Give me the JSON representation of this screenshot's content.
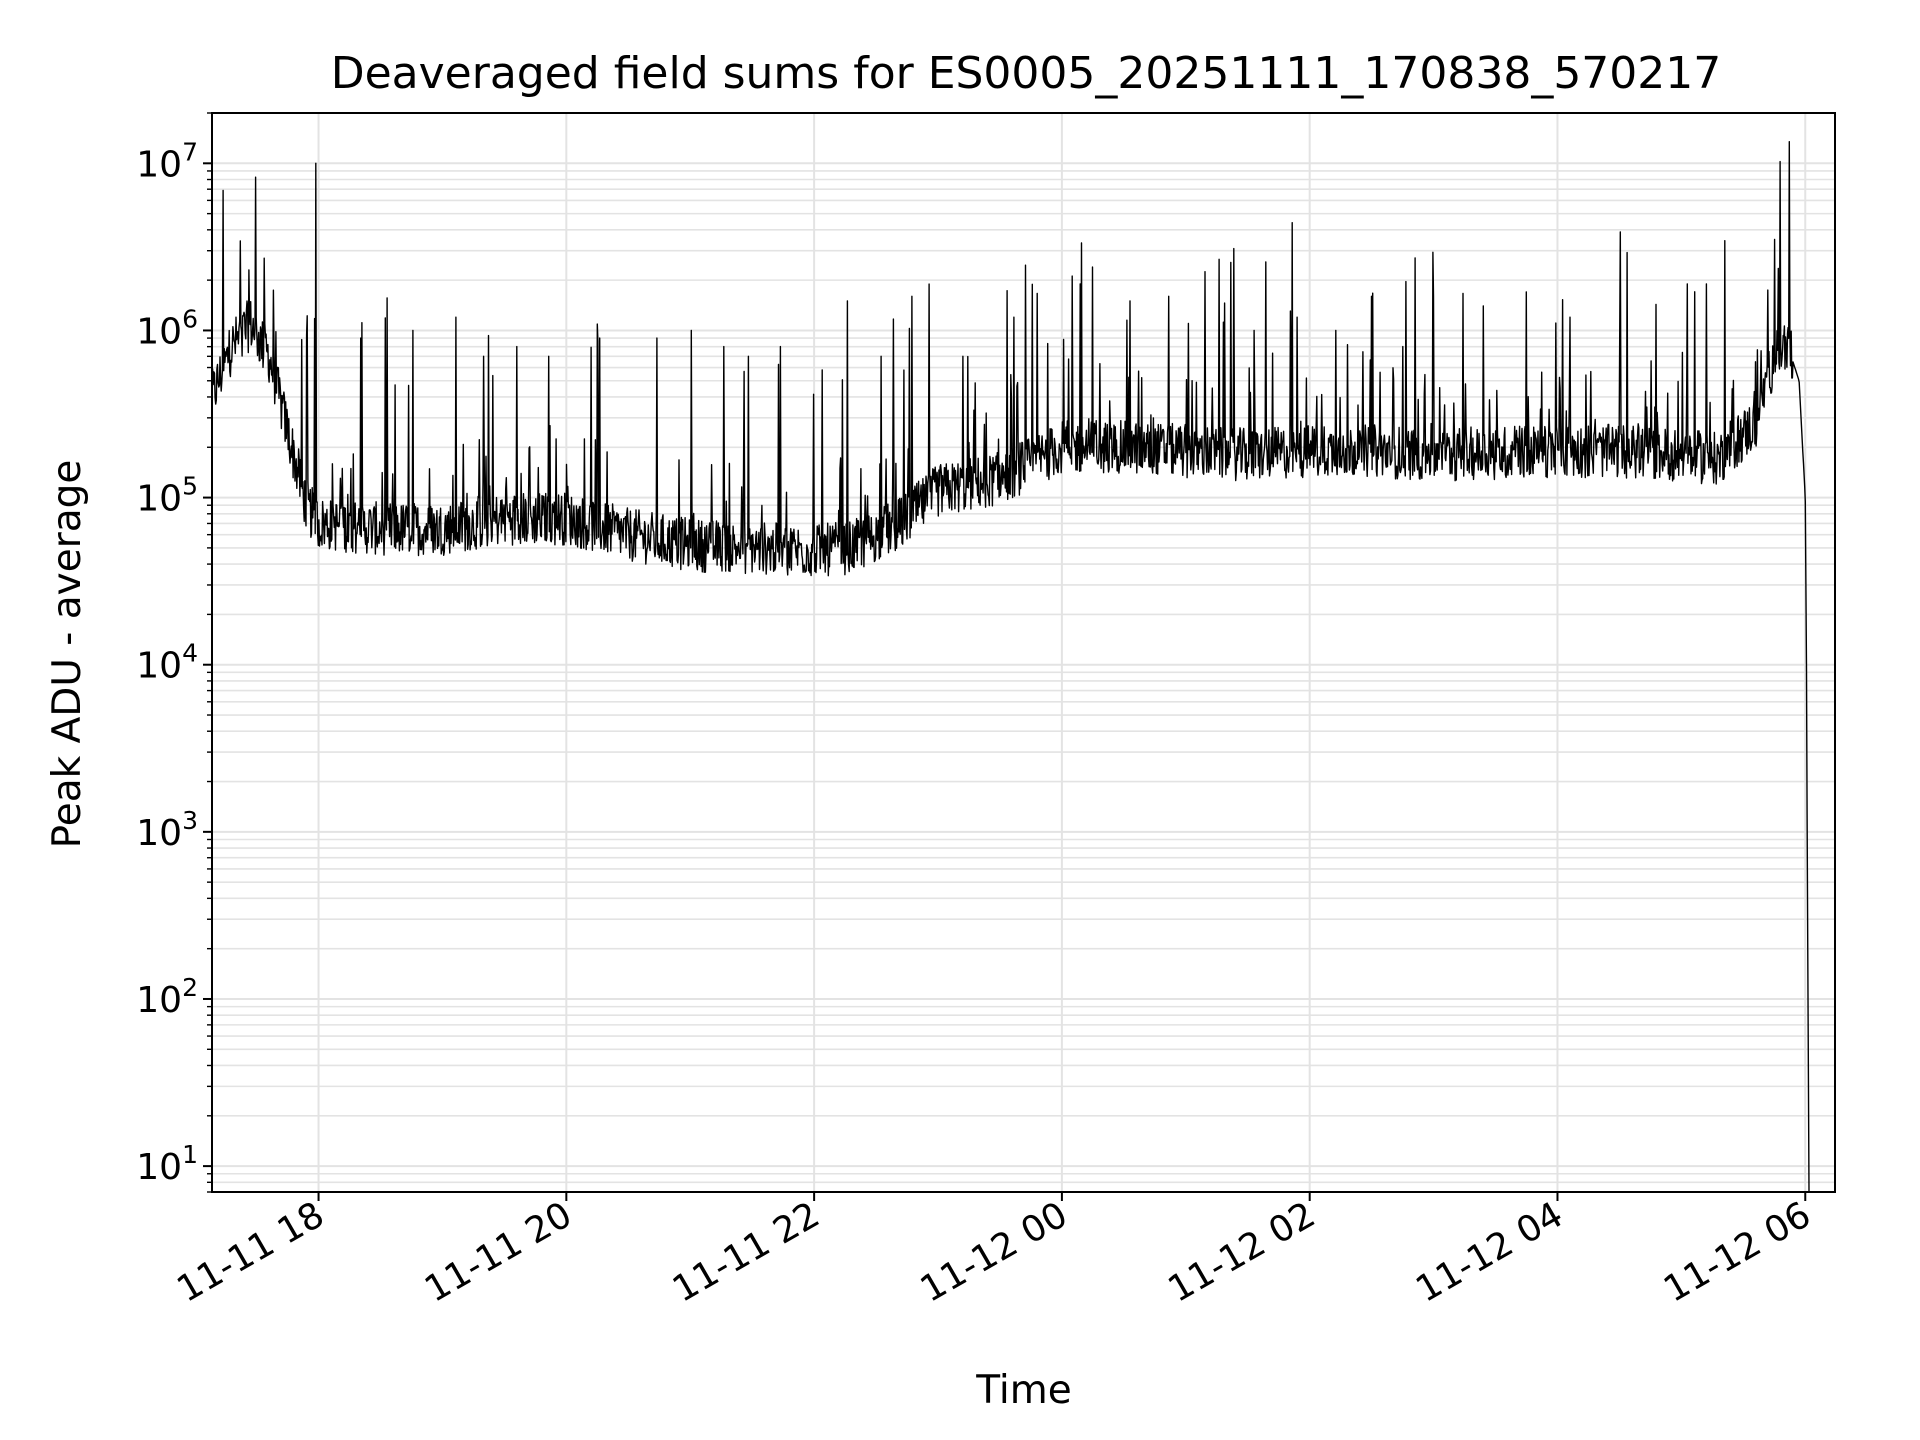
{
  "chart_data": {
    "type": "line",
    "title": "Deaveraged field sums for ES0005_20251111_170838_570217",
    "xlabel": "Time",
    "ylabel": "Peak ADU - average",
    "yscale": "log",
    "ylim": [
      7,
      20000000
    ],
    "xlim_hours": [
      -0.86,
      12.24
    ],
    "x_reference": "11-11 18:00",
    "grid": true,
    "line_color": "#000000",
    "x_ticks": [
      {
        "label": "11-11 18",
        "hours": 0
      },
      {
        "label": "11-11 20",
        "hours": 2
      },
      {
        "label": "11-11 22",
        "hours": 4
      },
      {
        "label": "11-12 00",
        "hours": 6
      },
      {
        "label": "11-12 02",
        "hours": 8
      },
      {
        "label": "11-12 04",
        "hours": 10
      },
      {
        "label": "11-12 06",
        "hours": 12
      }
    ],
    "y_ticks": [
      {
        "base": "10",
        "exp": "1",
        "value": 10
      },
      {
        "base": "10",
        "exp": "2",
        "value": 100
      },
      {
        "base": "10",
        "exp": "3",
        "value": 1000
      },
      {
        "base": "10",
        "exp": "4",
        "value": 10000
      },
      {
        "base": "10",
        "exp": "5",
        "value": 100000
      },
      {
        "base": "10",
        "exp": "6",
        "value": 1000000
      },
      {
        "base": "10",
        "exp": "7",
        "value": 10000000
      }
    ],
    "series": [
      {
        "name": "Peak ADU - average",
        "x_hours": [
          -0.86,
          -0.7,
          -0.55,
          -0.4,
          -0.25,
          -0.1,
          0.0,
          0.5,
          1.0,
          1.5,
          2.0,
          2.5,
          3.0,
          3.5,
          4.0,
          4.3,
          4.7,
          5.0,
          5.5,
          6.0,
          6.5,
          7.0,
          7.5,
          8.0,
          8.5,
          9.0,
          9.5,
          10.0,
          10.5,
          11.0,
          11.3,
          11.6,
          11.75,
          11.85,
          11.95,
          12.0,
          12.01,
          12.02,
          12.03
        ],
        "baseline": [
          400000,
          800000,
          1100000,
          700000,
          250000,
          90000,
          70000,
          65000,
          65000,
          75000,
          75000,
          60000,
          52000,
          50000,
          48000,
          50000,
          70000,
          110000,
          130000,
          200000,
          200000,
          190000,
          180000,
          190000,
          190000,
          180000,
          185000,
          190000,
          190000,
          180000,
          170000,
          280000,
          700000,
          850000,
          500000,
          100000,
          10000,
          180,
          7
        ],
        "spikes": [
          {
            "h": -0.56,
            "v": 2300000
          },
          {
            "h": -0.02,
            "v": 10000000
          },
          {
            "h": 0.34,
            "v": 900000
          },
          {
            "h": 0.76,
            "v": 1000000
          },
          {
            "h": 1.11,
            "v": 1200000
          },
          {
            "h": 1.33,
            "v": 700000
          },
          {
            "h": 1.6,
            "v": 800000
          },
          {
            "h": 1.86,
            "v": 700000
          },
          {
            "h": 2.27,
            "v": 900000
          },
          {
            "h": 2.73,
            "v": 900000
          },
          {
            "h": 3.01,
            "v": 1000000
          },
          {
            "h": 3.27,
            "v": 800000
          },
          {
            "h": 3.47,
            "v": 700000
          },
          {
            "h": 3.73,
            "v": 800000
          },
          {
            "h": 4.27,
            "v": 1500000
          },
          {
            "h": 4.54,
            "v": 700000
          },
          {
            "h": 4.79,
            "v": 1600000
          },
          {
            "h": 5.2,
            "v": 700000
          },
          {
            "h": 5.61,
            "v": 1200000
          },
          {
            "h": 6.15,
            "v": 1900000
          },
          {
            "h": 6.55,
            "v": 1500000
          },
          {
            "h": 6.86,
            "v": 1600000
          },
          {
            "h": 7.02,
            "v": 1100000
          },
          {
            "h": 7.55,
            "v": 1000000
          },
          {
            "h": 7.9,
            "v": 1200000
          },
          {
            "h": 8.21,
            "v": 1000000
          },
          {
            "h": 8.5,
            "v": 1600000
          },
          {
            "h": 8.75,
            "v": 800000
          },
          {
            "h": 9.0,
            "v": 1600000
          },
          {
            "h": 9.4,
            "v": 1400000
          },
          {
            "h": 9.75,
            "v": 1700000
          },
          {
            "h": 10.1,
            "v": 1200000
          },
          {
            "h": 10.5,
            "v": 900000
          },
          {
            "h": 11.05,
            "v": 1900000
          },
          {
            "h": 11.2,
            "v": 1900000
          },
          {
            "h": 11.75,
            "v": 3500000
          }
        ]
      }
    ]
  }
}
